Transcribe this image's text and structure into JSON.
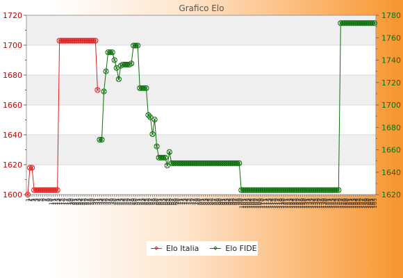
{
  "chart_data": {
    "type": "line",
    "title": "Grafico Elo",
    "x_tick_labels": [
      "1",
      "2",
      "1",
      "2",
      "3",
      "4",
      "5",
      "6",
      "7",
      "8",
      "9",
      "10",
      "11",
      "12",
      "13",
      "14",
      "15",
      "16",
      "17",
      "18",
      "19",
      "20",
      "21",
      "22",
      "23",
      "24",
      "25",
      "26",
      "27",
      "28",
      "29",
      "30",
      "31",
      "32",
      "33",
      "34",
      "35",
      "36",
      "37",
      "38",
      "39",
      "40",
      "41",
      "42",
      "43",
      "44",
      "45",
      "46",
      "47",
      "48",
      "49",
      "50",
      "51",
      "52",
      "53",
      "54",
      "55",
      "56",
      "57",
      "58",
      "59",
      "60",
      "61",
      "62",
      "63",
      "64",
      "65",
      "66",
      "67",
      "68",
      "69",
      "70",
      "71",
      "72",
      "73",
      "74",
      "75",
      "76",
      "77",
      "78",
      "79",
      "80",
      "81",
      "82",
      "83",
      "84",
      "85",
      "86",
      "87",
      "88",
      "89",
      "90",
      "91",
      "92",
      "93",
      "94",
      "95",
      "96",
      "97",
      "98",
      "99",
      "100",
      "101",
      "102",
      "103",
      "104",
      "105",
      "106",
      "107",
      "108",
      "109",
      "110",
      "111",
      "112",
      "113",
      "114",
      "115",
      "116",
      "117",
      "118",
      "119",
      "120",
      "121",
      "122",
      "123",
      "124",
      "125",
      "126",
      "127",
      "128",
      "129",
      "130",
      "131",
      "132",
      "133",
      "134",
      "135",
      "136",
      "137",
      "138",
      "139",
      "140",
      "141",
      "142",
      "143",
      "144",
      "145",
      "146",
      "147",
      "148",
      "149",
      "150",
      "151",
      "152",
      "153",
      "154",
      "155",
      "156",
      "157",
      "158",
      "159",
      "160",
      "161",
      "162",
      "163",
      "164",
      "165",
      "166",
      "167",
      "168",
      "169",
      "170",
      "171",
      "172",
      "173",
      "174",
      "175",
      "176",
      "177",
      "178",
      "179",
      "180",
      "181",
      "182",
      "183",
      "184",
      "185",
      "186",
      "187",
      "188",
      "189",
      "190",
      "191",
      "192",
      "193",
      "194",
      "195",
      "196",
      "197",
      "198",
      "199",
      "200"
    ],
    "y_left": {
      "ylim": [
        1600,
        1720
      ],
      "ticks": [
        1600,
        1620,
        1640,
        1660,
        1680,
        1700,
        1720
      ]
    },
    "y_right": {
      "ylim": [
        1620,
        1780
      ],
      "ticks": [
        1620,
        1640,
        1660,
        1680,
        1700,
        1720,
        1740,
        1760,
        1780
      ]
    },
    "grid": true,
    "legend_position": "bottom-center",
    "series": [
      {
        "name": "Elo Italia",
        "color": "#e02020",
        "axis": "left",
        "points": [
          [
            0,
            1600
          ],
          [
            1,
            1618
          ],
          [
            2,
            1618
          ],
          [
            3,
            1603
          ],
          [
            4,
            1603
          ],
          [
            5,
            1603
          ],
          [
            6,
            1603
          ],
          [
            7,
            1603
          ],
          [
            8,
            1603
          ],
          [
            9,
            1603
          ],
          [
            10,
            1603
          ],
          [
            11,
            1603
          ],
          [
            12,
            1603
          ],
          [
            13,
            1603
          ],
          [
            14,
            1603
          ],
          [
            15,
            1703
          ],
          [
            16,
            1703
          ],
          [
            17,
            1703
          ],
          [
            18,
            1703
          ],
          [
            19,
            1703
          ],
          [
            20,
            1703
          ],
          [
            21,
            1703
          ],
          [
            22,
            1703
          ],
          [
            23,
            1703
          ],
          [
            24,
            1703
          ],
          [
            25,
            1703
          ],
          [
            26,
            1703
          ],
          [
            27,
            1703
          ],
          [
            28,
            1703
          ],
          [
            29,
            1703
          ],
          [
            30,
            1703
          ],
          [
            31,
            1703
          ],
          [
            32,
            1703
          ],
          [
            33,
            1670
          ]
        ]
      },
      {
        "name": "Elo FIDE",
        "color": "#0a6e0a",
        "axis": "right",
        "points": [
          [
            34,
            1669
          ],
          [
            35,
            1669
          ],
          [
            36,
            1712
          ],
          [
            37,
            1730
          ],
          [
            38,
            1747
          ],
          [
            39,
            1747
          ],
          [
            40,
            1747
          ],
          [
            41,
            1740
          ],
          [
            42,
            1733
          ],
          [
            43,
            1723
          ],
          [
            44,
            1735
          ],
          [
            45,
            1736
          ],
          [
            46,
            1736
          ],
          [
            47,
            1736
          ],
          [
            48,
            1736
          ],
          [
            49,
            1737
          ],
          [
            50,
            1753
          ],
          [
            51,
            1753
          ],
          [
            52,
            1753
          ],
          [
            53,
            1715
          ],
          [
            54,
            1715
          ],
          [
            55,
            1715
          ],
          [
            56,
            1715
          ],
          [
            57,
            1691
          ],
          [
            58,
            1689
          ],
          [
            59,
            1674
          ],
          [
            60,
            1687
          ],
          [
            61,
            1663
          ],
          [
            62,
            1653
          ],
          [
            63,
            1653
          ],
          [
            64,
            1653
          ],
          [
            65,
            1653
          ],
          [
            66,
            1646
          ],
          [
            67,
            1658
          ],
          [
            68,
            1648
          ],
          [
            69,
            1648
          ],
          [
            70,
            1648
          ],
          [
            71,
            1648
          ],
          [
            72,
            1648
          ],
          [
            73,
            1648
          ],
          [
            74,
            1648
          ],
          [
            75,
            1648
          ],
          [
            76,
            1648
          ],
          [
            77,
            1648
          ],
          [
            78,
            1648
          ],
          [
            79,
            1648
          ],
          [
            80,
            1648
          ],
          [
            81,
            1648
          ],
          [
            82,
            1648
          ],
          [
            83,
            1648
          ],
          [
            84,
            1648
          ],
          [
            85,
            1648
          ],
          [
            86,
            1648
          ],
          [
            87,
            1648
          ],
          [
            88,
            1648
          ],
          [
            89,
            1648
          ],
          [
            90,
            1648
          ],
          [
            91,
            1648
          ],
          [
            92,
            1648
          ],
          [
            93,
            1648
          ],
          [
            94,
            1648
          ],
          [
            95,
            1648
          ],
          [
            96,
            1648
          ],
          [
            97,
            1648
          ],
          [
            98,
            1648
          ],
          [
            99,
            1648
          ],
          [
            100,
            1648
          ],
          [
            101,
            1624
          ],
          [
            102,
            1624
          ],
          [
            103,
            1624
          ],
          [
            104,
            1624
          ],
          [
            105,
            1624
          ],
          [
            106,
            1624
          ],
          [
            107,
            1624
          ],
          [
            108,
            1624
          ],
          [
            109,
            1624
          ],
          [
            110,
            1624
          ],
          [
            111,
            1624
          ],
          [
            112,
            1624
          ],
          [
            113,
            1624
          ],
          [
            114,
            1624
          ],
          [
            115,
            1624
          ],
          [
            116,
            1624
          ],
          [
            117,
            1624
          ],
          [
            118,
            1624
          ],
          [
            119,
            1624
          ],
          [
            120,
            1624
          ],
          [
            121,
            1624
          ],
          [
            122,
            1624
          ],
          [
            123,
            1624
          ],
          [
            124,
            1624
          ],
          [
            125,
            1624
          ],
          [
            126,
            1624
          ],
          [
            127,
            1624
          ],
          [
            128,
            1624
          ],
          [
            129,
            1624
          ],
          [
            130,
            1624
          ],
          [
            131,
            1624
          ],
          [
            132,
            1624
          ],
          [
            133,
            1624
          ],
          [
            134,
            1624
          ],
          [
            135,
            1624
          ],
          [
            136,
            1624
          ],
          [
            137,
            1624
          ],
          [
            138,
            1624
          ],
          [
            139,
            1624
          ],
          [
            140,
            1624
          ],
          [
            141,
            1624
          ],
          [
            142,
            1624
          ],
          [
            143,
            1624
          ],
          [
            144,
            1624
          ],
          [
            145,
            1624
          ],
          [
            146,
            1624
          ],
          [
            147,
            1624
          ],
          [
            148,
            1773
          ],
          [
            149,
            1773
          ],
          [
            150,
            1773
          ],
          [
            151,
            1773
          ],
          [
            152,
            1773
          ],
          [
            153,
            1773
          ],
          [
            154,
            1773
          ],
          [
            155,
            1773
          ],
          [
            156,
            1773
          ],
          [
            157,
            1773
          ],
          [
            158,
            1773
          ],
          [
            159,
            1773
          ],
          [
            160,
            1773
          ],
          [
            161,
            1773
          ],
          [
            162,
            1773
          ],
          [
            163,
            1773
          ],
          [
            164,
            1773
          ]
        ]
      }
    ]
  },
  "legend": {
    "items": [
      {
        "label": "Elo Italia",
        "color": "#e02020"
      },
      {
        "label": "Elo FIDE",
        "color": "#0a6e0a"
      }
    ]
  }
}
